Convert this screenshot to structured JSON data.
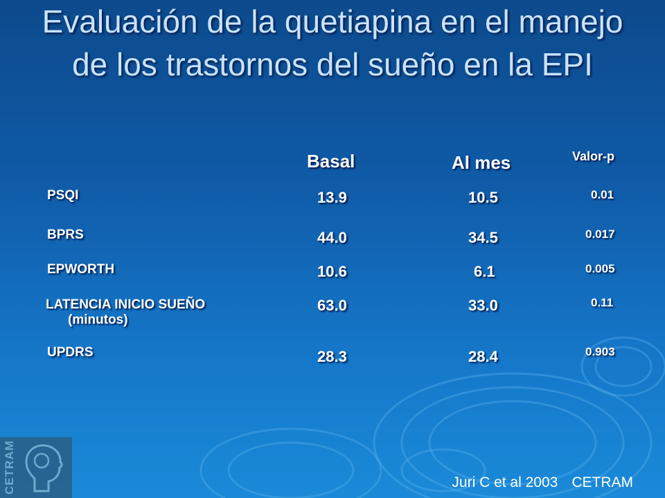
{
  "slide": {
    "title": "Evaluación de la quetiapina en el manejo de los trastornos del sueño en la EPI"
  },
  "table": {
    "headers": {
      "basal": "Basal",
      "al_mes": "Al mes",
      "valor_p": "Valor-p"
    },
    "rows": [
      {
        "label": "PSQI",
        "label_sub": "",
        "basal": "13.9",
        "al_mes": "10.5",
        "p": "0.01"
      },
      {
        "label": "BPRS",
        "label_sub": "",
        "basal": "44.0",
        "al_mes": "34.5",
        "p": "0.017"
      },
      {
        "label": "EPWORTH",
        "label_sub": "",
        "basal": "10.6",
        "al_mes": "6.1",
        "p": "0.005"
      },
      {
        "label": "LATENCIA INICIO SUEÑO",
        "label_sub": "(minutos)",
        "basal": "63.0",
        "al_mes": "33.0",
        "p": "0.11"
      },
      {
        "label": "UPDRS",
        "label_sub": "",
        "basal": "28.3",
        "al_mes": "28.4",
        "p": "0.903"
      }
    ]
  },
  "footer": {
    "citation": "Juri C et al 2003",
    "org": "CETRAM"
  },
  "logo": {
    "text": "CETRAM"
  },
  "colors": {
    "title": "#c9e3ff",
    "text": "#ffffff",
    "background": "#1576c8"
  }
}
